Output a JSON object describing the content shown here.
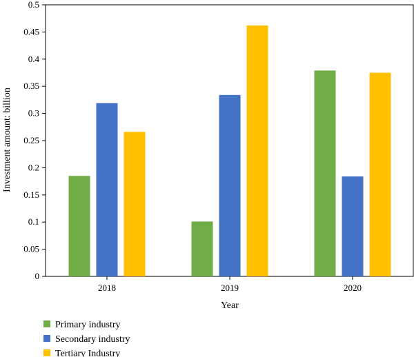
{
  "chart_data": {
    "type": "bar",
    "title": "",
    "xlabel": "Year",
    "ylabel": "Investment amount: billion",
    "categories": [
      "2018",
      "2019",
      "2020"
    ],
    "ylim": [
      0,
      0.5
    ],
    "yticks": [
      "0",
      "0.05",
      "0.1",
      "0.15",
      "0.2",
      "0.25",
      "0.3",
      "0.35",
      "0.4",
      "0.45",
      "0.5"
    ],
    "grid": false,
    "legend_position": "bottom-left",
    "series": [
      {
        "name": "Primary industry",
        "color": "#70AD47",
        "values": [
          0.185,
          0.101,
          0.379
        ]
      },
      {
        "name": "Secondary industry",
        "color": "#4472C4",
        "values": [
          0.319,
          0.334,
          0.184
        ]
      },
      {
        "name": "Tertiary Industry",
        "color": "#FFC000",
        "values": [
          0.266,
          0.462,
          0.375
        ]
      }
    ]
  }
}
